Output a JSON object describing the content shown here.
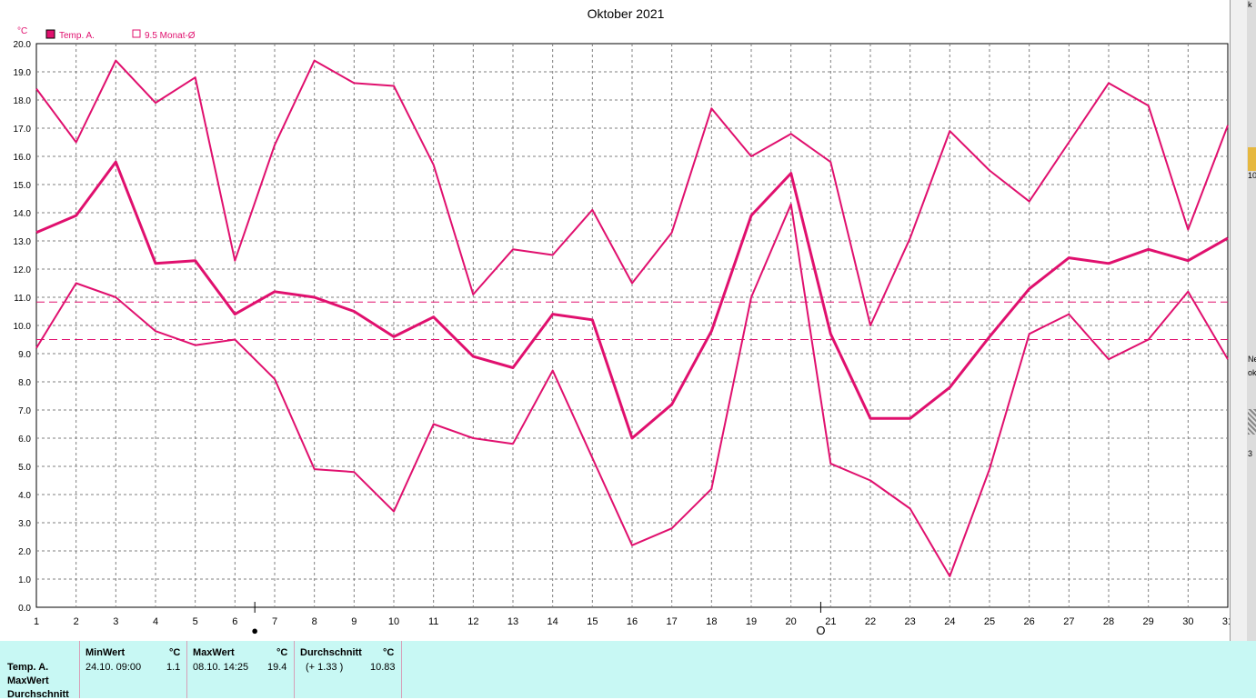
{
  "chart_data": {
    "type": "line",
    "title": "Oktober 2021",
    "ylabel": "°C",
    "x": [
      1,
      2,
      3,
      4,
      5,
      6,
      7,
      8,
      9,
      10,
      11,
      12,
      13,
      14,
      15,
      16,
      17,
      18,
      19,
      20,
      21,
      22,
      23,
      24,
      25,
      26,
      27,
      28,
      29,
      30,
      31
    ],
    "ylim": [
      0,
      20
    ],
    "yticks": [
      "0.0",
      "1.0",
      "2.0",
      "3.0",
      "4.0",
      "5.0",
      "6.0",
      "7.0",
      "8.0",
      "9.0",
      "10.0",
      "11.0",
      "12.0",
      "13.0",
      "14.0",
      "15.0",
      "16.0",
      "17.0",
      "18.0",
      "19.0",
      "20.0"
    ],
    "grid": true,
    "legend": [
      {
        "label": "Temp. A.",
        "marker": "filled",
        "color": "#e0106e"
      },
      {
        "label": "9.5 Monat-Ø",
        "marker": "outline",
        "color": "#e0106e"
      }
    ],
    "series": [
      {
        "role": "max",
        "values": [
          18.4,
          16.5,
          19.4,
          17.9,
          18.8,
          12.3,
          16.4,
          19.4,
          18.6,
          18.5,
          15.7,
          11.1,
          12.7,
          12.5,
          14.1,
          11.5,
          13.3,
          17.7,
          16.0,
          16.8,
          15.8,
          10.0,
          13.1,
          16.9,
          15.5,
          14.4,
          16.5,
          18.6,
          17.8,
          13.4,
          17.1
        ]
      },
      {
        "role": "avg",
        "values": [
          13.3,
          13.9,
          15.8,
          12.2,
          12.3,
          10.4,
          11.2,
          11.0,
          10.5,
          9.6,
          10.3,
          8.9,
          8.5,
          10.4,
          10.2,
          6.0,
          7.2,
          9.8,
          13.9,
          15.4,
          9.7,
          6.7,
          6.7,
          7.8,
          9.6,
          11.3,
          12.4,
          12.2,
          12.7,
          12.3,
          13.1
        ]
      },
      {
        "role": "min",
        "values": [
          9.2,
          11.5,
          11.0,
          9.8,
          9.3,
          9.5,
          8.1,
          4.9,
          4.8,
          3.4,
          6.5,
          6.0,
          5.8,
          8.4,
          5.3,
          2.2,
          2.8,
          4.2,
          11.0,
          14.3,
          5.1,
          4.5,
          3.5,
          1.1,
          4.9,
          9.7,
          10.4,
          8.8,
          9.5,
          11.2,
          8.8
        ]
      }
    ],
    "reference_lines": [
      10.83,
      9.5
    ],
    "markers": [
      {
        "x": 6.5,
        "symbol": "●"
      },
      {
        "x": 20.75,
        "symbol": "O"
      }
    ],
    "colors": {
      "line": "#e0106e",
      "grid": "#7f7f7f",
      "panel": "#c8f8f4"
    }
  },
  "summary": {
    "row_labels": [
      "Temp. A.",
      "MaxWert",
      "Durchschnitt"
    ],
    "min_header": "MinWert",
    "min_unit": "°C",
    "min_time": "24.10.  09:00",
    "min_value": "1.1",
    "max_header": "MaxWert",
    "max_unit": "°C",
    "max_time": "08.10.  14:25",
    "max_value": "19.4",
    "avg_header": "Durchschnitt",
    "avg_unit": "°C",
    "avg_delta": "(+ 1.33 )",
    "avg_value": "10.83"
  },
  "edge_fragments": [
    "k",
    "10",
    "Ne",
    "ok",
    "3"
  ]
}
